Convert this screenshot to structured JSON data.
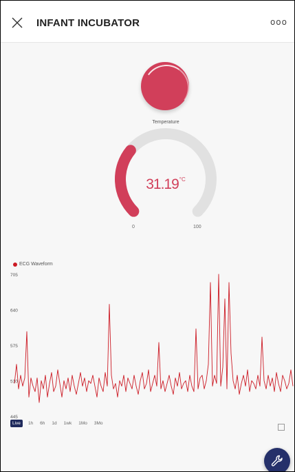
{
  "header": {
    "title": "INFANT INCUBATOR",
    "more_label": "ooo",
    "close_icon": "close-icon"
  },
  "led": {
    "color": "#d13f5a",
    "state": "on"
  },
  "gauge": {
    "label": "Temperature",
    "value": "31.19",
    "unit": "°C",
    "min": "0",
    "max": "100",
    "fraction": 0.3119,
    "accent_color": "#d13f5a",
    "track_color": "#e1e1e1"
  },
  "chart_data": {
    "type": "line",
    "title": "",
    "series": [
      {
        "name": "ECG Waveform",
        "color": "#cc1a24",
        "values": [
          505,
          540,
          495,
          520,
          500,
          515,
          600,
          480,
          515,
          500,
          490,
          515,
          470,
          510,
          495,
          520,
          480,
          505,
          525,
          490,
          500,
          530,
          505,
          480,
          510,
          495,
          515,
          490,
          520,
          500,
          485,
          505,
          525,
          500,
          515,
          490,
          510,
          505,
          520,
          500,
          480,
          515,
          500,
          490,
          525,
          500,
          650,
          520,
          495,
          505,
          480,
          510,
          500,
          520,
          490,
          515,
          505,
          495,
          520,
          500,
          485,
          510,
          525,
          495,
          505,
          530,
          490,
          505,
          520,
          500,
          580,
          495,
          510,
          490,
          505,
          520,
          500,
          485,
          515,
          500,
          525,
          495,
          505,
          510,
          490,
          520,
          500,
          490,
          605,
          495,
          515,
          520,
          495,
          510,
          540,
          690,
          500,
          520,
          505,
          705,
          500,
          535,
          660,
          495,
          690,
          560,
          510,
          495,
          520,
          485,
          505,
          520,
          500,
          530,
          490,
          510,
          505,
          495,
          520,
          500,
          590,
          510,
          495,
          520,
          500,
          515,
          490,
          525,
          505,
          490,
          520,
          510,
          495,
          505,
          530,
          500
        ]
      }
    ],
    "y_ticks": [
      "705",
      "640",
      "575",
      "510",
      "445"
    ],
    "ylim": [
      445,
      705
    ],
    "grid": false,
    "legend_position": "top-left"
  },
  "range": {
    "options": [
      "Live",
      "1h",
      "6h",
      "1d",
      "1wk",
      "1Mo",
      "3Mo"
    ],
    "selected": "Live"
  },
  "icons": {
    "fullscreen": "expand-icon",
    "fab": "wrench-icon"
  },
  "colors": {
    "brand_navy": "#25306a",
    "accent": "#d13f5a",
    "waveform": "#cc1a24"
  }
}
